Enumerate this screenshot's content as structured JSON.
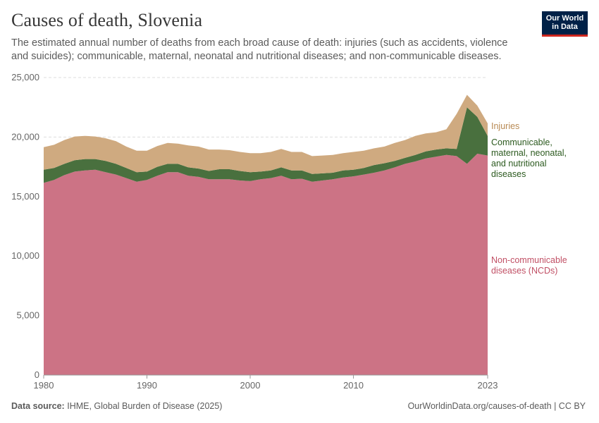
{
  "header": {
    "title": "Causes of death, Slovenia",
    "subtitle": "The estimated annual number of deaths from each broad cause of death: injuries (such as accidents, violence and suicides); communicable, maternal, neonatal and nutritional diseases; and non-communicable diseases.",
    "logo_line1": "Our World",
    "logo_line2": "in Data"
  },
  "footer": {
    "source_label": "Data source:",
    "source_text": "IHME, Global Burden of Disease (2025)",
    "url_text": "OurWorldinData.org/causes-of-death | CC BY"
  },
  "chart_data": {
    "type": "area",
    "stacked": true,
    "title": "Causes of death, Slovenia",
    "x": [
      1980,
      1981,
      1982,
      1983,
      1984,
      1985,
      1986,
      1987,
      1988,
      1989,
      1990,
      1991,
      1992,
      1993,
      1994,
      1995,
      1996,
      1997,
      1998,
      1999,
      2000,
      2001,
      2002,
      2003,
      2004,
      2005,
      2006,
      2007,
      2008,
      2009,
      2010,
      2011,
      2012,
      2013,
      2014,
      2015,
      2016,
      2017,
      2018,
      2019,
      2020,
      2021,
      2022,
      2023
    ],
    "x_ticks": [
      "1980",
      "1990",
      "2000",
      "2010",
      "2023"
    ],
    "x_tick_values": [
      1980,
      1990,
      2000,
      2010,
      2023
    ],
    "y_ticks": [
      "0",
      "5,000",
      "10,000",
      "15,000",
      "20,000",
      "25,000"
    ],
    "y_tick_values": [
      0,
      5000,
      10000,
      15000,
      20000,
      25000
    ],
    "ylim": [
      0,
      25000
    ],
    "xlim": [
      1980,
      2023
    ],
    "grid": true,
    "series": [
      {
        "name": "Non-communicable diseases (NCDs)",
        "label_lines": [
          "Non-communicable",
          "diseases (NCDs)"
        ],
        "color": "#cc7385",
        "label_color": "#c15065",
        "values": [
          16150,
          16400,
          16800,
          17100,
          17200,
          17250,
          17050,
          16850,
          16550,
          16250,
          16400,
          16750,
          17050,
          17050,
          16750,
          16650,
          16450,
          16450,
          16450,
          16350,
          16300,
          16450,
          16550,
          16750,
          16450,
          16500,
          16250,
          16350,
          16450,
          16600,
          16700,
          16850,
          17000,
          17200,
          17450,
          17750,
          17950,
          18200,
          18350,
          18500,
          18400,
          17750,
          18600,
          18450
        ]
      },
      {
        "name": "Communicable, maternal, neonatal, and nutritional diseases",
        "label_lines": [
          "Communicable,",
          "maternal, neonatal,",
          "and nutritional",
          "diseases"
        ],
        "color": "#49703e",
        "label_color": "#2c5a1f",
        "values": [
          1100,
          1000,
          950,
          950,
          950,
          900,
          950,
          900,
          850,
          800,
          700,
          750,
          700,
          700,
          700,
          700,
          700,
          850,
          850,
          800,
          750,
          650,
          650,
          700,
          750,
          700,
          650,
          600,
          550,
          600,
          550,
          550,
          650,
          600,
          550,
          500,
          550,
          600,
          600,
          550,
          600,
          4750,
          3100,
          1650
        ]
      },
      {
        "name": "Injuries",
        "label_lines": [
          "Injuries"
        ],
        "color": "#cfaa80",
        "label_color": "#b88a54",
        "values": [
          1900,
          1950,
          2000,
          2000,
          1950,
          1900,
          1900,
          1900,
          1800,
          1800,
          1750,
          1750,
          1750,
          1700,
          1850,
          1850,
          1800,
          1650,
          1600,
          1600,
          1600,
          1550,
          1550,
          1550,
          1550,
          1550,
          1500,
          1500,
          1500,
          1450,
          1500,
          1450,
          1400,
          1400,
          1500,
          1500,
          1600,
          1500,
          1450,
          1600,
          2950,
          1050,
          950,
          1050
        ]
      }
    ]
  }
}
